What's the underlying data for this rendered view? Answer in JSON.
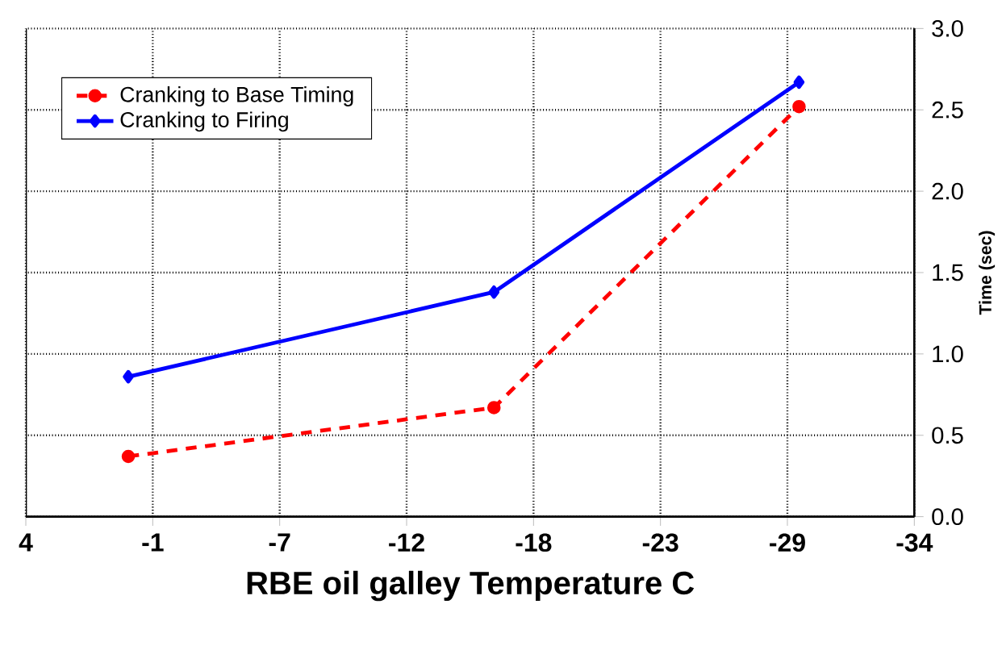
{
  "chart_data": {
    "type": "line",
    "xlabel": "RBE oil galley Temperature C",
    "ylabel": "Time (sec)",
    "xlim": [
      4,
      -34.15
    ],
    "xticks": [
      4,
      {
        "value": -1.45,
        "label": "-1"
      },
      {
        "value": -6.9,
        "label": "-7"
      },
      {
        "value": -12.35,
        "label": "-12"
      },
      {
        "value": -17.8,
        "label": "-18"
      },
      {
        "value": -23.25,
        "label": "-23"
      },
      {
        "value": -28.7,
        "label": "-29"
      },
      {
        "value": -34.15,
        "label": "-34"
      }
    ],
    "ylim": [
      0,
      3.0
    ],
    "yticks": [
      {
        "value": 0,
        "label": "0.0"
      },
      0.5,
      {
        "value": 1,
        "label": "1.0"
      },
      1.5,
      {
        "value": 2,
        "label": "2.0"
      },
      2.5,
      {
        "value": 3,
        "label": "3.0"
      }
    ],
    "x": [
      -0.4,
      -16.1,
      -29.2
    ],
    "series": [
      {
        "name": "Cranking to Base Timing",
        "color": "#ff0000",
        "values": [
          0.37,
          0.67,
          2.52
        ],
        "line_style": "dashed",
        "marker": "circle"
      },
      {
        "name": "Cranking to Firing",
        "color": "#0000ff",
        "values": [
          0.86,
          1.38,
          2.67
        ],
        "line_style": "solid",
        "marker": "diamond"
      }
    ],
    "grid": true,
    "legend": "top left"
  }
}
